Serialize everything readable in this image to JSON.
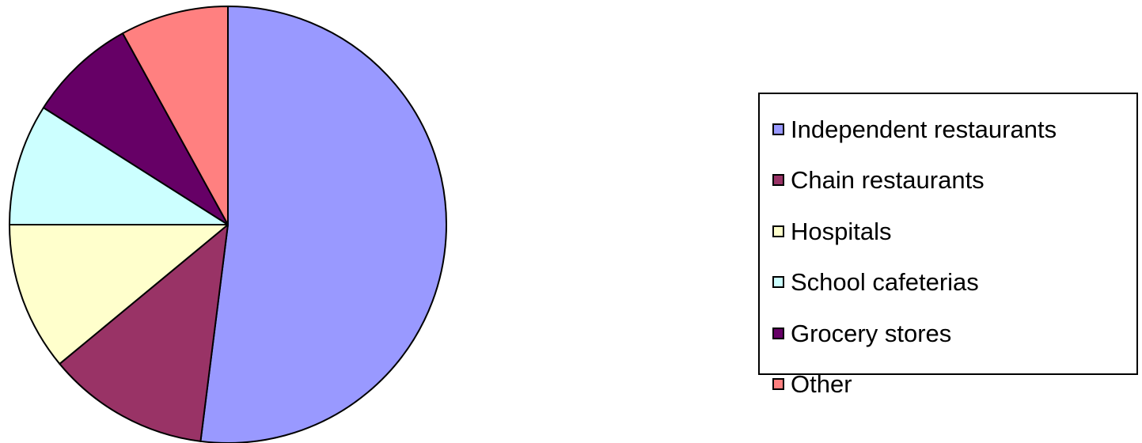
{
  "chart_data": {
    "type": "pie",
    "title": "",
    "start_angle_deg": 0,
    "direction": "clockwise",
    "slices": [
      {
        "label": "Independent restaurants",
        "value": 52,
        "color": "#9999FF"
      },
      {
        "label": "Chain restaurants",
        "value": 12,
        "color": "#993366"
      },
      {
        "label": "Hospitals",
        "value": 11,
        "color": "#FFFFCC"
      },
      {
        "label": "School cafeterias",
        "value": 9,
        "color": "#CCFFFF"
      },
      {
        "label": "Grocery stores",
        "value": 8,
        "color": "#660066"
      },
      {
        "label": "Other",
        "value": 8,
        "color": "#FF8080"
      }
    ],
    "legend": {
      "position": "right"
    }
  }
}
